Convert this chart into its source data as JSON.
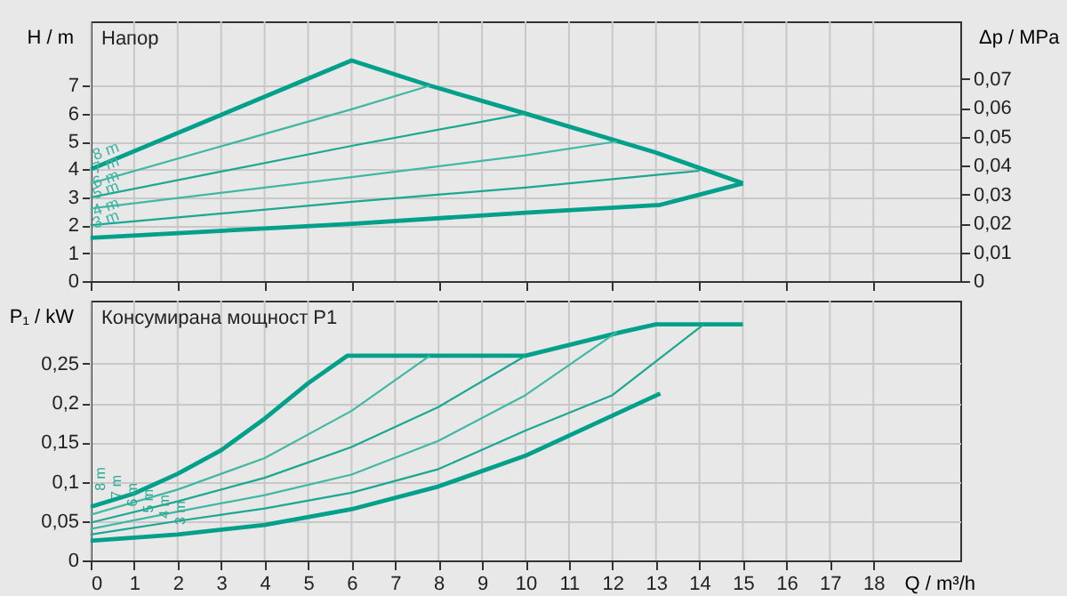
{
  "chart_data": [
    {
      "type": "line",
      "title": "Напор",
      "ylabel": "H / m",
      "y2label": "Δp / MPa",
      "xlim": [
        0,
        20
      ],
      "ylim": [
        0,
        9.3
      ],
      "y2lim": [
        0,
        0.09
      ],
      "xticks": [
        0,
        1,
        2,
        3,
        4,
        5,
        6,
        7,
        8,
        9,
        10,
        11,
        12,
        13,
        14,
        15,
        16,
        17,
        18
      ],
      "yticks": [
        0,
        1,
        2,
        3,
        4,
        5,
        6,
        7
      ],
      "y2ticks": [
        0,
        {
          "value": 0.01,
          "label": "0,01"
        },
        {
          "value": 0.02,
          "label": "0,02"
        },
        {
          "value": 0.03,
          "label": "0,03"
        },
        {
          "value": 0.04,
          "label": "0,04"
        },
        {
          "value": 0.05,
          "label": "0,05"
        },
        {
          "value": 0.06,
          "label": "0,06"
        },
        {
          "value": 0.07,
          "label": "0,07"
        }
      ],
      "tick_labels": "y",
      "grid": true,
      "line_style": "solid",
      "series": [
        {
          "color": "#00a08a",
          "x": [
            0,
            6,
            7.8,
            10,
            13,
            15
          ],
          "values": [
            4.0,
            7.9,
            7.0,
            6.0,
            4.6,
            3.5
          ]
        },
        {
          "color": "#40b8a4",
          "x": [
            0,
            6,
            7.8
          ],
          "values": [
            3.5,
            6.15,
            7.0
          ]
        },
        {
          "color": "#1aa892",
          "x": [
            0,
            6,
            10
          ],
          "values": [
            3.0,
            4.84,
            6.0
          ]
        },
        {
          "color": "#40b8a4",
          "x": [
            0,
            6,
            10,
            12.1
          ],
          "values": [
            2.6,
            3.72,
            4.5,
            5.0
          ]
        },
        {
          "color": "#1aa892",
          "x": [
            0,
            6,
            10,
            14.0
          ],
          "values": [
            2.0,
            2.84,
            3.35,
            3.95
          ]
        },
        {
          "color": "#00a08a",
          "x": [
            0,
            6,
            10,
            13.1,
            15
          ],
          "values": [
            1.55,
            2.05,
            2.45,
            2.73,
            3.5
          ]
        }
      ],
      "annotations": [
        "8 m",
        "7 m",
        "6 m",
        "5 m",
        "4 m",
        "3 m"
      ]
    },
    {
      "type": "line",
      "title": "Консумирана мощност P1",
      "ylabel": "P₁ / kW",
      "xlabel": "Q / m³/h",
      "xlim": [
        0,
        20
      ],
      "ylim": [
        0,
        0.33
      ],
      "xticks": [
        0,
        1,
        2,
        3,
        4,
        5,
        6,
        7,
        8,
        9,
        10,
        11,
        12,
        13,
        14,
        15,
        16,
        17,
        18
      ],
      "yticks": [
        0,
        {
          "value": 0.05,
          "label": "0,05"
        },
        {
          "value": 0.1,
          "label": "0,1"
        },
        {
          "value": 0.15,
          "label": "0,15"
        },
        {
          "value": 0.2,
          "label": "0,2"
        },
        {
          "value": 0.25,
          "label": "0,25"
        }
      ],
      "grid": true,
      "line_style": "solid",
      "series": [
        {
          "color": "#00a08a",
          "x": [
            0,
            1,
            2,
            3,
            4,
            5,
            5.9,
            10,
            12.2,
            13,
            15
          ],
          "values": [
            0.068,
            0.085,
            0.11,
            0.14,
            0.18,
            0.225,
            0.26,
            0.26,
            0.29,
            0.3,
            0.3
          ]
        },
        {
          "color": "#40b8a4",
          "x": [
            0,
            2,
            4,
            6,
            7.8
          ],
          "values": [
            0.058,
            0.09,
            0.13,
            0.19,
            0.26
          ]
        },
        {
          "color": "#1aa892",
          "x": [
            0,
            2,
            4,
            6,
            8,
            10
          ],
          "values": [
            0.048,
            0.075,
            0.105,
            0.144,
            0.195,
            0.26
          ]
        },
        {
          "color": "#40b8a4",
          "x": [
            0,
            2,
            4,
            6,
            8,
            10,
            12.1
          ],
          "values": [
            0.04,
            0.062,
            0.083,
            0.109,
            0.152,
            0.21,
            0.29
          ]
        },
        {
          "color": "#1aa892",
          "x": [
            0,
            2,
            4,
            6,
            8,
            10,
            12,
            14.1
          ],
          "values": [
            0.033,
            0.05,
            0.066,
            0.086,
            0.116,
            0.165,
            0.21,
            0.3
          ]
        },
        {
          "color": "#00a08a",
          "x": [
            0,
            2,
            4,
            6,
            8,
            10,
            13.1
          ],
          "values": [
            0.025,
            0.033,
            0.045,
            0.065,
            0.094,
            0.133,
            0.212
          ]
        }
      ],
      "annotations": [
        "8 m",
        "7 m",
        "6 m",
        "5 m",
        "4 m",
        "3 m"
      ]
    }
  ]
}
